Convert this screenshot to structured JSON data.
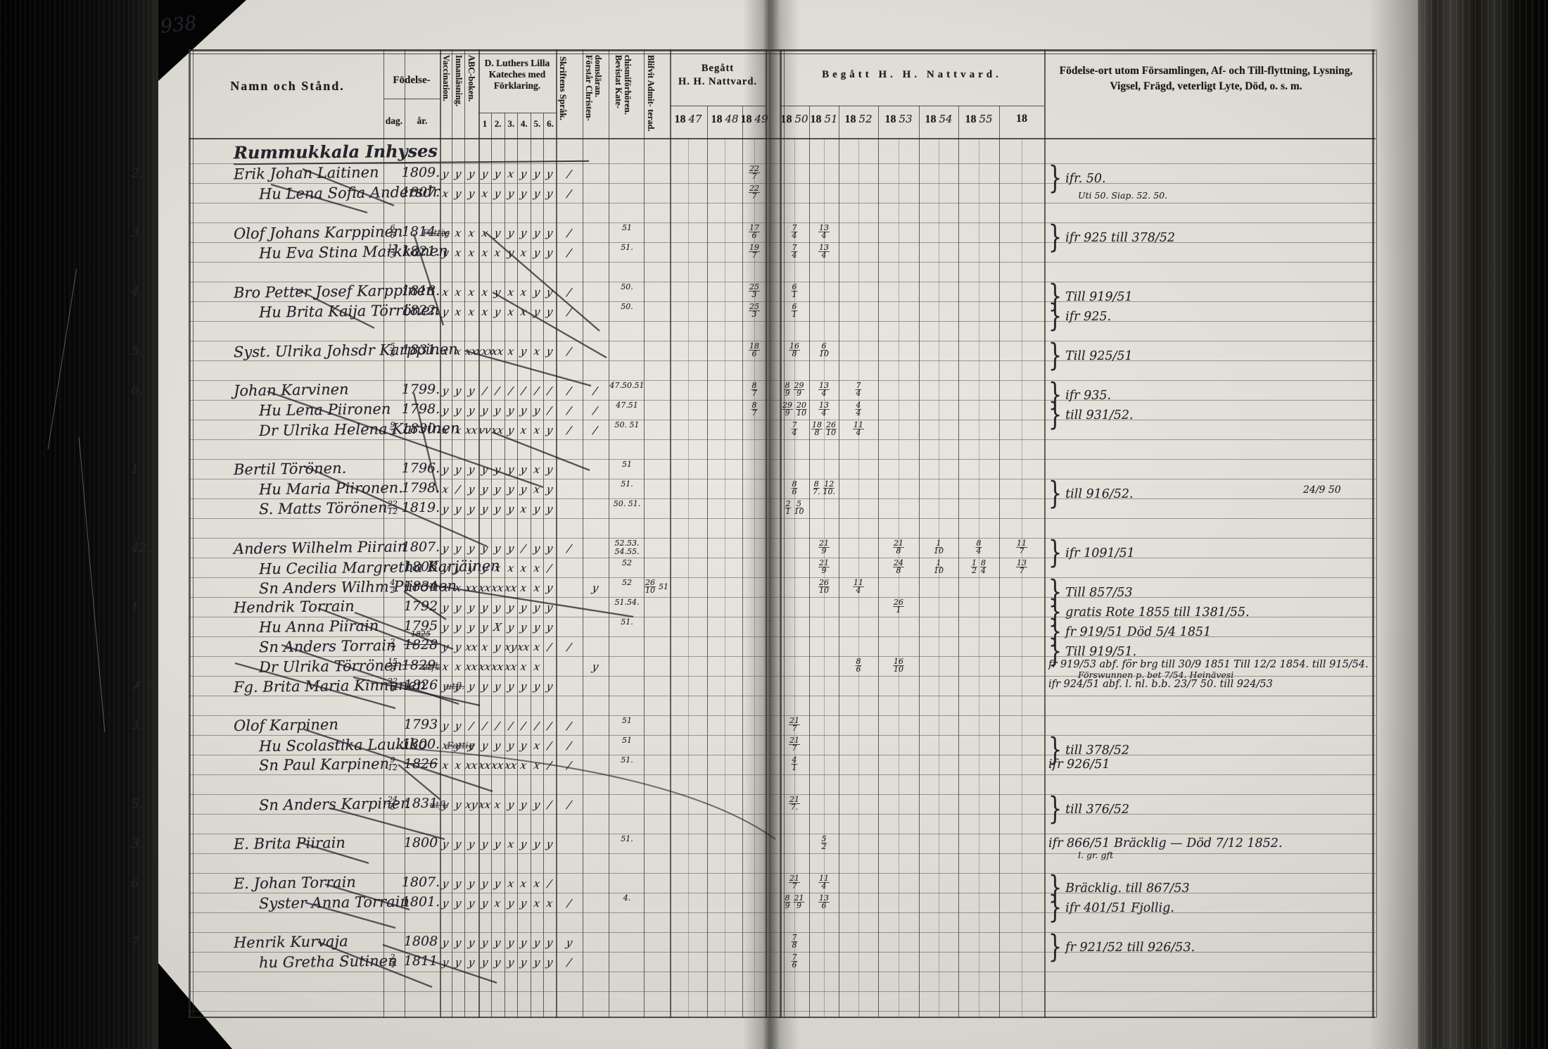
{
  "scan": {
    "page_number": "938"
  },
  "table": {
    "headers": {
      "name": "Namn och Stånd.",
      "birth": "Födelse-",
      "birth_day": "dag.",
      "birth_year": "år.",
      "vaccination": "Vaccination.",
      "reading": "Innanläsning.",
      "abc": "ABC-boken.",
      "catechism": "D. Luthers Lilla Kateches med Förklaring.",
      "catechism_cols": [
        "1",
        "2.",
        "3.",
        "4.",
        "5.",
        "6."
      ],
      "scripture": "Skriftens Språk.",
      "understands": "Förstår Christen- domsläran.",
      "attended": "Bevistat Kate- chismiförhören.",
      "admitted": "Blifvit Admit- terad.",
      "communion_left_line1": "Begått",
      "communion_left_line2": "H. H. Nattvard.",
      "communion_right": "Begått H. H. Nattvard.",
      "years_left": [
        "18 47",
        "18 48",
        "18 49"
      ],
      "years_right": [
        "18 50",
        "18 51",
        "18 52",
        "18 53",
        "18 54",
        "18 55",
        "18"
      ],
      "notes": "Födelse-ort utom Församlingen, Af- och Till-flyttning, Lysning, Vigsel, Frägd, veterligt Lyte, Död, o. s. m."
    },
    "section_title": "Rummukkala Inhyses",
    "rows": [
      {
        "no": "2.",
        "name": "Erik Johan Laitinen",
        "byear": "1809.",
        "marks": "y y y y y x y y y",
        "script": "/",
        "y1849": "22/7",
        "note": "ifr. 50.",
        "note_small": "Uti 50.   Siap. 52. 50.",
        "brace": true
      },
      {
        "name": "Hu Lena Sofia Andersdr",
        "indent": true,
        "byear": "1807.",
        "marks": "x y y x y y y y y",
        "script": "/",
        "y1849": "22/7"
      },
      {
        "no": "3.",
        "name": "Olof Johans Karppinen",
        "name_note": "Fattig",
        "bday": "6/6",
        "byear": "1814.",
        "marks": "x x x x y y y y y",
        "script": "/",
        "attended": "51",
        "y1849": "17/6",
        "y1850": "7/4",
        "y1851": "13/4",
        "note": "ifr 925 till 378/52",
        "brace": true
      },
      {
        "name": "Hu Eva Stina Markkanen",
        "indent": true,
        "bday": "17/3",
        "byear": "1821.",
        "marks": "y x x x x y x y y",
        "script": "/",
        "attended": "51.",
        "y1849": "19/7",
        "y1850": "7/4",
        "y1851": "13/4"
      },
      {
        "no": "4.",
        "name": "Bro Petter Josef Karppinen",
        "byear": "1818.",
        "marks": "x x x x y x x y y",
        "script": "/",
        "attended": "50.",
        "y1849": "25/3",
        "y1850": "6/1",
        "note": "Till 919/51",
        "brace": true
      },
      {
        "name": "Hu Brita Kaija Törrönen",
        "indent": true,
        "byear": "1822.",
        "marks": "y x x x y x x y y",
        "script": "/",
        "attended": "50.",
        "y1849": "25/3",
        "y1850": "6/1",
        "note": "ifr 925.",
        "brace": true
      },
      {
        "no": "5.",
        "name": "Syst. Ulrika Johsdr Karppinen",
        "bday": "5/8",
        "byear": "1831.",
        "marks": "x x xx xxx xx x y x y",
        "script": "/",
        "y1849": "18/6",
        "y1850": "16/8",
        "y1851": "6/10",
        "note": "Till 925/51",
        "brace": true
      },
      {
        "no": "6.",
        "name": "Johan Karvinen",
        "byear": "1799.",
        "marks": "y y y / / / / / /",
        "script": "/",
        "script2": "/",
        "attended": "47.50.51",
        "y1849": "8/7",
        "y1850": "8/9 29/9",
        "y1851": "13/4",
        "y1852": "7/4",
        "note": "ifr 935.",
        "brace": true
      },
      {
        "name": "Hu Lena Piironen",
        "indent": true,
        "byear": "1798.",
        "marks": "y y y y y y y y /",
        "script": "/",
        "script2": "/",
        "attended": "47.51",
        "y1849": "8/7",
        "y1850": "29/9 20/10",
        "y1851": "13/4",
        "y1852": "4/4",
        "note": "till 931/52.",
        "brace": true
      },
      {
        "name": "Dr Ulrika Helena Karvinen",
        "indent": true,
        "bday": "9/3",
        "byear": "1830.",
        "marks": "x x xx vv xx y x x y",
        "script": "/",
        "script2": "/",
        "attended": "50. 51",
        "y1850": "7/4",
        "y1851": "18/8 26/10",
        "y1852": "11/4"
      },
      {
        "no": "1.",
        "name": "Bertil Törönen.",
        "byear": "1796.",
        "marks": "y y y y y y y x y",
        "attended": "51"
      },
      {
        "name": "Hu Maria Piironen.",
        "indent": true,
        "byear": "1798.",
        "marks": "x / y y y y y x y",
        "attended": "51.",
        "y1850": "8/6",
        "y1851": "8/7. 12/10.",
        "note": "till 916/52.",
        "note_right": "24/9 50",
        "brace": true
      },
      {
        "name": "S. Matts Törönen",
        "indent": true,
        "bday": "22/12",
        "byear": "1819.",
        "marks": "y y y y y y x y y",
        "attended": "50. 51.",
        "y1850": "2/1 5/10"
      },
      {
        "no": "42.",
        "name": "Anders Wilhelm Piirain",
        "byear": "1807.",
        "marks": "y y y y y y / y y",
        "script": "/",
        "attended": "52.53. 54.55.",
        "y1851": "21/9",
        "y1853": "21/8",
        "y1854": "1/10",
        "y1855": "8/4",
        "y18": "11/7",
        "note": "ifr 1091/51",
        "brace": true
      },
      {
        "name": "Hu Cecilia Margretha Karjäinen",
        "indent": true,
        "byear": "1808",
        "marks": "y y y y x x x x /",
        "attended": "52",
        "y1851": "21/9",
        "y1853": "24/8",
        "y1854": "1/10",
        "y1855": "1/2 8/4",
        "y18": "13/7"
      },
      {
        "name": "Sn Anders Wilhm Piironen",
        "indent": true,
        "bday": "4/2",
        "byear": "1834",
        "byear_struck": true,
        "marks": "x x xx xx xx xx x x y",
        "script2": "y",
        "admitted": "26/10 51",
        "attended": "52",
        "y1851": "26/10",
        "y1852": "11/4",
        "note": "Till 857/53",
        "brace": true
      },
      {
        "no": "1",
        "name": "Hendrik Torrain",
        "byear": "1792",
        "marks": "y y y y y y y y y",
        "attended": "51.54.",
        "y1853": "26/1",
        "note": "gratis   Rote 1855 till 1381/55.",
        "brace": true
      },
      {
        "name": "Hu Anna Piirain",
        "indent": true,
        "byear": "1795",
        "marks": "y y y y X y y y y",
        "attended": "51.",
        "note": "fr 919/51   Död 5/4 1851",
        "brace": true
      },
      {
        "name": "Sn Anders Torrain",
        "indent": true,
        "bday": "2/7",
        "byear": "1828",
        "byear_small": "1825",
        "byear_struck": true,
        "marks": "y y xx x y xy xx x /",
        "script": "/",
        "note": "Till 919/51.",
        "brace": true
      },
      {
        "name": "Dr Ulrika Törrönen",
        "indent": true,
        "name_note": "utfl.",
        "bday": "15/6",
        "byear": "1829.",
        "byear_struck": true,
        "marks": "x x xx xx xx xx x x -",
        "script2": "y",
        "y1852": "8/6",
        "y1853": "16/10",
        "note": "fr 919/53 abf. för brg till 30/9 1851  Till 12/2 1854. till 915/54.",
        "note_small": "Förswunnen p. bet 7/54.        Heinävesi"
      },
      {
        "no": "✗ 7.",
        "name": "Fg. Brita Maria Kinnunen",
        "name_note": "utfl.",
        "bday": "22/8",
        "byear": "1826",
        "marks": "y y y y y y y y y",
        "note": "ifr 924/51 abf. l. nl. b.b. 23/7 50. till 924/53"
      },
      {
        "no": "3.",
        "name": "Olof Karpinen",
        "byear": "1793",
        "marks": "y y / / / / / / /",
        "script": "/",
        "attended": "51",
        "y1850": "21/7"
      },
      {
        "name": "Hu Scolastika Laukiko",
        "indent": true,
        "name_note": "Fattig",
        "byear": "1800.",
        "marks": "x y y y y y y x /",
        "script": "/",
        "attended": "51",
        "y1850": "21/7",
        "note": "till 378/52",
        "brace": true
      },
      {
        "name": "Sn Paul Karpinen",
        "indent": true,
        "bday": "9/12",
        "byear": "1826",
        "byear_struck": true,
        "marks": "x x xx xx xx xx x x /",
        "script": "/",
        "attended": "51.",
        "y1850": "4/1",
        "note": "ifr 926/51"
      },
      {
        "no": "5.",
        "name": "Sn Anders Karpinen",
        "indent": true,
        "name_note": "utfl.",
        "bday": "24/6",
        "byear": "1831",
        "marks": "y y xy xx x y y y /",
        "script": "/",
        "y1850": "21/7.",
        "note": "till 376/52",
        "brace": true
      },
      {
        "no": "3.",
        "name": "E. Brita Piirain",
        "byear": "1800",
        "marks": "y y y y y x y y y",
        "attended": "51.",
        "y1851": "5/2",
        "note": "ifr 866/51  Bräcklig —  Död 7/12 1852.",
        "note_small": "l. gr. gft"
      },
      {
        "no": "6.",
        "name": "E. Johan Torrain",
        "byear": "1807.",
        "marks": "y y y y y x x x /",
        "y1850": "21/7",
        "y1851": "11/4",
        "note": "Bräcklig.    till 867/53",
        "brace": true
      },
      {
        "name": "Syster Anna Torrain",
        "indent": true,
        "byear": "1801.",
        "marks": "y y y y x y y x x",
        "script": "/",
        "attended": "4.",
        "y1850": "8/9 21/9",
        "y1851": "13/6",
        "note": "ifr 401/51  Fjollig.",
        "brace": true
      },
      {
        "no": "7.",
        "name": "Henrik Kurvaja",
        "byear": "1808",
        "marks": "y y y y y y y y y",
        "script": "y",
        "y1850": "7/8",
        "note": "fr 921/52  till 926/53.",
        "brace": true
      },
      {
        "name": "hu Gretha Sutinen",
        "indent": true,
        "bday": "2/4",
        "byear": "1811",
        "marks": "y y y y y y y y y",
        "script": "/",
        "y1850": "7/6"
      }
    ]
  }
}
